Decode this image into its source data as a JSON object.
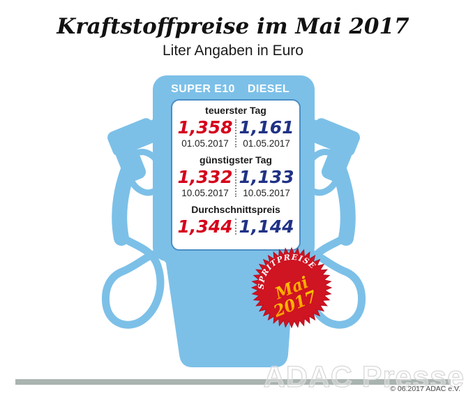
{
  "title": "Kraftstoffpreise im Mai 2017",
  "subtitle": "Liter Angaben in Euro",
  "pump": {
    "columns": [
      "SUPER E10",
      "DIESEL"
    ],
    "sections": [
      {
        "label": "teuerster Tag",
        "super": {
          "price": "1,358",
          "date": "01.05.2017"
        },
        "diesel": {
          "price": "1,161",
          "date": "01.05.2017"
        }
      },
      {
        "label": "günstigster Tag",
        "super": {
          "price": "1,332",
          "date": "10.05.2017"
        },
        "diesel": {
          "price": "1,133",
          "date": "10.05.2017"
        }
      },
      {
        "label": "Durchschnittspreis",
        "super": {
          "price": "1,344"
        },
        "diesel": {
          "price": "1,144"
        }
      }
    ]
  },
  "badge": {
    "arc_text": "SPRITPREISE",
    "month": "Mai",
    "year": "2017"
  },
  "footer": {
    "watermark": "ADAC Presse",
    "copyright": "© 06.2017 ADAC e.V."
  },
  "colors": {
    "pump_blue": "#7cc0e8",
    "panel_border_blue": "#4a8ec6",
    "price_red": "#d6021c",
    "price_blue": "#203286",
    "badge_red": "#cf1422",
    "badge_text_yellow": "#ffb600",
    "ground_bar_gray": "#a9b3af"
  },
  "chart_data": {
    "type": "table",
    "title": "Kraftstoffpreise im Mai 2017",
    "subtitle": "Liter Angaben in Euro",
    "unit": "Euro/Liter",
    "columns": [
      "SUPER E10",
      "DIESEL"
    ],
    "rows": [
      {
        "label": "teuerster Tag",
        "SUPER E10": 1.358,
        "DIESEL": 1.161,
        "date_super": "01.05.2017",
        "date_diesel": "01.05.2017"
      },
      {
        "label": "günstigster Tag",
        "SUPER E10": 1.332,
        "DIESEL": 1.133,
        "date_super": "10.05.2017",
        "date_diesel": "10.05.2017"
      },
      {
        "label": "Durchschnittspreis",
        "SUPER E10": 1.344,
        "DIESEL": 1.144
      }
    ]
  }
}
